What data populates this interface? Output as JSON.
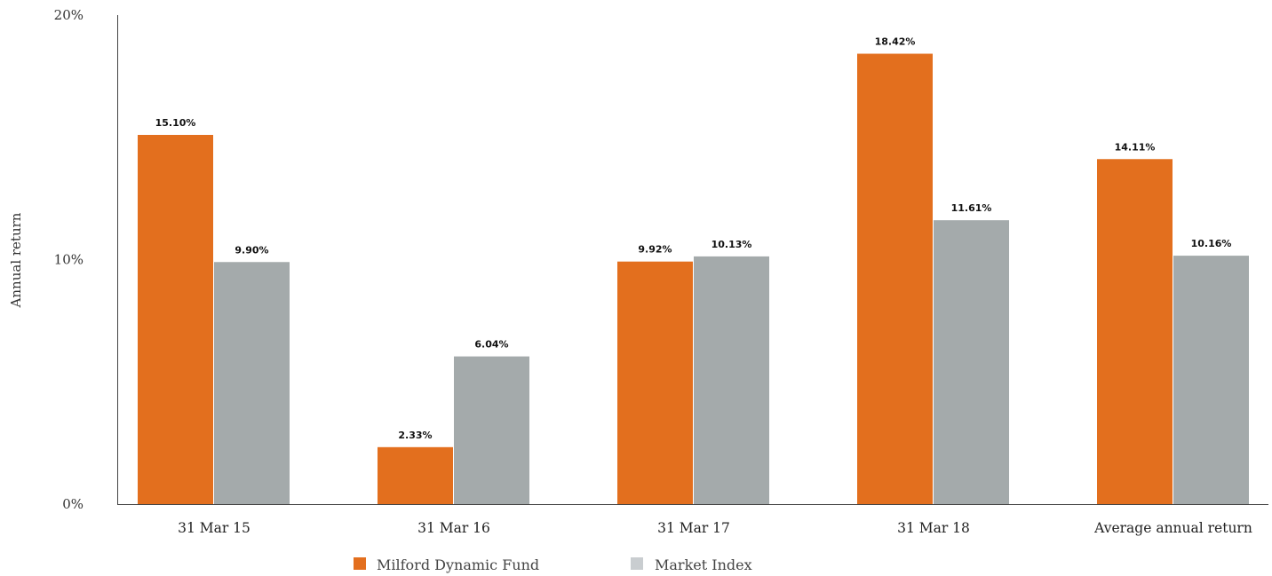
{
  "chart_data": {
    "type": "bar",
    "title": "",
    "xlabel": "",
    "ylabel": "Annual return",
    "categories": [
      "31 Mar 15",
      "31 Mar 16",
      "31 Mar 17",
      "31 Mar 18",
      "Average annual return"
    ],
    "ylim": [
      0,
      20
    ],
    "yticks": [
      {
        "value": 0,
        "label": "0%"
      },
      {
        "value": 10,
        "label": "10%"
      },
      {
        "value": 20,
        "label": "20%"
      }
    ],
    "grid": false,
    "legend_position": "bottom",
    "series": [
      {
        "name": "Milford Dynamic Fund",
        "color": "#e36f1e",
        "values": [
          15.1,
          2.33,
          9.92,
          18.42,
          14.11
        ],
        "labels": [
          "15.10%",
          "2.33%",
          "9.92%",
          "18.42%",
          "14.11%"
        ]
      },
      {
        "name": "Market Index",
        "color": "#a4aaab",
        "values": [
          9.9,
          6.04,
          10.13,
          11.61,
          10.16
        ],
        "labels": [
          "9.90%",
          "6.04%",
          "10.13%",
          "11.61%",
          "10.16%"
        ]
      }
    ]
  }
}
